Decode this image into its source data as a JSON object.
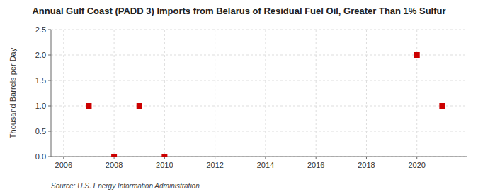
{
  "chart_data": {
    "type": "scatter",
    "title": "Annual Gulf Coast (PADD 3) Imports from Belarus of Residual Fuel Oil, Greater Than 1% Sulfur",
    "y_label": "Thousand Barrels per Day",
    "source": "Source: U.S. Energy Information Administration",
    "x": [
      2007,
      2008,
      2009,
      2010,
      2020,
      2021
    ],
    "values": [
      1.0,
      0.0,
      1.0,
      0.0,
      2.0,
      1.0
    ],
    "color": "#cc0000",
    "marker": "square",
    "xlim": [
      2005.5,
      2022.0
    ],
    "ylim": [
      0.0,
      2.5
    ],
    "xticks": [
      2006,
      2008,
      2010,
      2012,
      2014,
      2016,
      2018,
      2020
    ],
    "yticks": [
      {
        "value": 0.0,
        "label": "0.0"
      },
      {
        "value": 0.5,
        "label": "0.5"
      },
      {
        "value": 1.0,
        "label": "1.0"
      },
      {
        "value": 1.5,
        "label": "1.5"
      },
      {
        "value": 2.0,
        "label": "2.0"
      },
      {
        "value": 2.5,
        "label": "2.5"
      }
    ],
    "grid": true
  }
}
